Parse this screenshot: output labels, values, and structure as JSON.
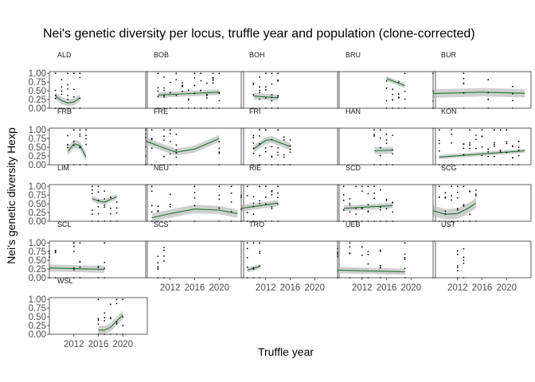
{
  "chart_data": {
    "type": "scatter",
    "title": "Nei's genetic diversity per locus, truffle year and population (clone-corrected)",
    "xlabel": "Truffle year",
    "ylabel": "Nei's genetic diversity Hexp",
    "xlim": [
      2008,
      2024
    ],
    "ylim": [
      0,
      1.05
    ],
    "x_ticks": [
      2012,
      2016,
      2020
    ],
    "y_ticks": [
      0.0,
      0.25,
      0.5,
      0.75,
      1.0
    ],
    "x_tick_labels": [
      "2012",
      "2016",
      "2020"
    ],
    "y_tick_labels": [
      "0.00",
      "0.25",
      "0.50",
      "0.75",
      "1.00"
    ],
    "smooth_color": "#1b7a2e",
    "band_color": "#bfbfbf",
    "point_color": "#000000",
    "facets": [
      {
        "label": "ALD",
        "years": [
          2009,
          2010,
          2011,
          2012,
          2013
        ],
        "curve": [
          [
            2009,
            0.35
          ],
          [
            2010,
            0.22
          ],
          [
            2011,
            0.15
          ],
          [
            2012,
            0.18
          ],
          [
            2013,
            0.3
          ]
        ],
        "band": 0.1
      },
      {
        "label": "BOB",
        "years": [
          2010,
          2011,
          2012,
          2013,
          2014,
          2015,
          2016,
          2017,
          2018,
          2019,
          2020
        ],
        "curve": [
          [
            2010,
            0.38
          ],
          [
            2020,
            0.46
          ]
        ],
        "band": 0.08
      },
      {
        "label": "BOH",
        "years": [
          2010,
          2011,
          2012,
          2013,
          2014
        ],
        "curve": [
          [
            2010,
            0.35
          ],
          [
            2014,
            0.3
          ]
        ],
        "band": 0.09
      },
      {
        "label": "BRU",
        "years": [
          2016,
          2017,
          2018,
          2019
        ],
        "curve": [
          [
            2016,
            0.85
          ],
          [
            2019,
            0.65
          ]
        ],
        "band": 0.07
      },
      {
        "label": "BUR",
        "years": [
          2008,
          2013,
          2017,
          2021
        ],
        "curve": [
          [
            2008,
            0.42
          ],
          [
            2016,
            0.46
          ],
          [
            2023,
            0.43
          ]
        ],
        "band": 0.12
      },
      {
        "label": "FRB",
        "years": [
          2011,
          2012,
          2013,
          2014
        ],
        "curve": [
          [
            2011,
            0.38
          ],
          [
            2012,
            0.6
          ],
          [
            2013,
            0.55
          ],
          [
            2014,
            0.22
          ]
        ],
        "band": 0.12
      },
      {
        "label": "FRE",
        "years": [
          2008,
          2009,
          2011,
          2012,
          2013,
          2020
        ],
        "curve": [
          [
            2008,
            0.68
          ],
          [
            2011,
            0.48
          ],
          [
            2013,
            0.36
          ],
          [
            2016,
            0.45
          ],
          [
            2020,
            0.75
          ]
        ],
        "band": 0.1
      },
      {
        "label": "FRI",
        "years": [
          2010,
          2011,
          2012,
          2013,
          2014,
          2015,
          2016
        ],
        "curve": [
          [
            2010,
            0.45
          ],
          [
            2012,
            0.7
          ],
          [
            2013,
            0.72
          ],
          [
            2016,
            0.52
          ]
        ],
        "band": 0.1
      },
      {
        "label": "HAN",
        "years": [
          2014,
          2015,
          2016,
          2017
        ],
        "curve": [
          [
            2014,
            0.4
          ],
          [
            2017,
            0.42
          ]
        ],
        "band": 0.1
      },
      {
        "label": "KON",
        "years": [
          2009,
          2011,
          2013,
          2014,
          2015,
          2016,
          2017,
          2018,
          2019,
          2020,
          2021,
          2022
        ],
        "curve": [
          [
            2009,
            0.22
          ],
          [
            2023,
            0.4
          ]
        ],
        "band": 0.06
      },
      {
        "label": "LIM",
        "years": [
          2015,
          2016,
          2017,
          2018,
          2019
        ],
        "curve": [
          [
            2015,
            0.65
          ],
          [
            2016,
            0.58
          ],
          [
            2017,
            0.55
          ],
          [
            2019,
            0.7
          ]
        ],
        "band": 0.08
      },
      {
        "label": "NEU",
        "years": [
          2009,
          2010,
          2012,
          2016,
          2020,
          2022
        ],
        "curve": [
          [
            2009,
            0.1
          ],
          [
            2012,
            0.22
          ],
          [
            2016,
            0.35
          ],
          [
            2020,
            0.32
          ],
          [
            2023,
            0.22
          ]
        ],
        "band": 0.12
      },
      {
        "label": "RIE",
        "years": [
          2008,
          2009,
          2010,
          2011,
          2012,
          2013,
          2014
        ],
        "curve": [
          [
            2008,
            0.37
          ],
          [
            2014,
            0.52
          ]
        ],
        "band": 0.09
      },
      {
        "label": "SCD",
        "years": [
          2009,
          2010,
          2011,
          2012,
          2013,
          2014,
          2015,
          2016,
          2017
        ],
        "curve": [
          [
            2009,
            0.37
          ],
          [
            2017,
            0.45
          ]
        ],
        "band": 0.08
      },
      {
        "label": "SCG",
        "years": [
          2009,
          2010,
          2011,
          2012,
          2013,
          2014,
          2015
        ],
        "curve": [
          [
            2008,
            0.3
          ],
          [
            2010,
            0.2
          ],
          [
            2012,
            0.22
          ],
          [
            2014,
            0.4
          ],
          [
            2015,
            0.52
          ]
        ],
        "band": 0.15
      },
      {
        "label": "SCL",
        "years": [
          2008,
          2009,
          2012,
          2013,
          2016,
          2017
        ],
        "curve": [
          [
            2008,
            0.28
          ],
          [
            2017,
            0.24
          ]
        ],
        "band": 0.1
      },
      {
        "label": "SCS",
        "years": [
          2010,
          2011
        ],
        "curve": [],
        "band": 0
      },
      {
        "label": "TRO",
        "years": [
          2009,
          2010,
          2011
        ],
        "curve": [
          [
            2009,
            0.22
          ],
          [
            2011,
            0.32
          ]
        ],
        "band": 0.07
      },
      {
        "label": "UEB",
        "years": [
          2008,
          2010,
          2012,
          2013,
          2015,
          2019
        ],
        "curve": [
          [
            2008,
            0.22
          ],
          [
            2019,
            0.17
          ]
        ],
        "band": 0.09
      },
      {
        "label": "UST",
        "years": [
          2012,
          2013
        ],
        "curve": [],
        "band": 0
      },
      {
        "label": "WSL",
        "years": [
          2016,
          2017,
          2018,
          2019,
          2020
        ],
        "curve": [
          [
            2016,
            0.12
          ],
          [
            2017,
            0.12
          ],
          [
            2018,
            0.2
          ],
          [
            2019,
            0.38
          ],
          [
            2020,
            0.55
          ]
        ],
        "band": 0.12
      }
    ]
  }
}
